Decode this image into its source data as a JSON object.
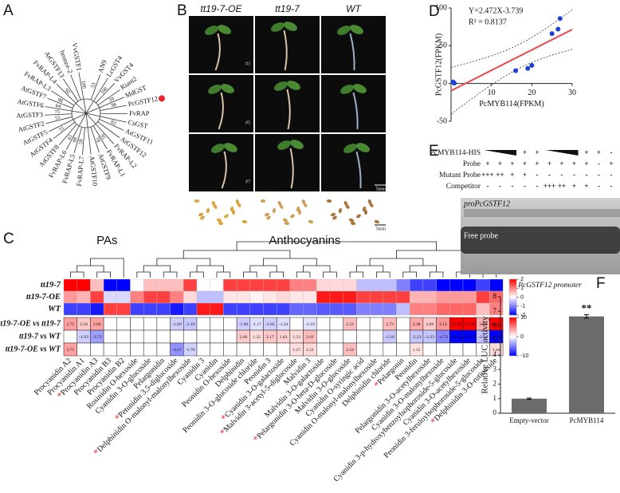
{
  "panel_letters": [
    "A",
    "B",
    "C",
    "D",
    "E",
    "F"
  ],
  "tree": {
    "leaves": [
      {
        "label": "VvGSTF1",
        "support": "100"
      },
      {
        "label": "bronze-2"
      },
      {
        "label": "AtGSTF13"
      },
      {
        "label": "FvRAP-L4",
        "support": "92"
      },
      {
        "label": "FvRAP-L3"
      },
      {
        "label": "AtGSTF7",
        "support": "98"
      },
      {
        "label": "AtGSTF6",
        "support": "64"
      },
      {
        "label": "AtGSTF3",
        "support": "75"
      },
      {
        "label": "AtGSTF2",
        "support": "55"
      },
      {
        "label": "AtGSTF5"
      },
      {
        "label": "AtGSTF4",
        "support": "51"
      },
      {
        "label": "AtGSTF8"
      },
      {
        "label": "FvRAP-L6",
        "support": "61"
      },
      {
        "label": "FvRAP-L5",
        "support": "99"
      },
      {
        "label": "FvRAP-L7",
        "support": "58"
      },
      {
        "label": "AtGSTF10"
      },
      {
        "label": "AtGSTF9",
        "support": "78"
      },
      {
        "label": "FvRAP-L1",
        "support": "95"
      },
      {
        "label": "FvRAP-L2"
      },
      {
        "label": "AtGSTF12"
      },
      {
        "label": "AtGSTF11",
        "support": "83"
      },
      {
        "label": "CsGST"
      },
      {
        "label": "FvRAP"
      },
      {
        "label": "PcGSTF12",
        "support": "98",
        "dot": "#e8262b"
      },
      {
        "label": "MdGST",
        "support": "59"
      },
      {
        "label": "Riant2"
      },
      {
        "label": "VvGST4",
        "support": "100"
      },
      {
        "label": "LcGST4"
      },
      {
        "label": "AN9",
        "support": "53"
      }
    ]
  },
  "seedlings": {
    "headers": [
      "tt19-7-OE",
      "tt19-7",
      "WT"
    ],
    "lines": [
      "#3",
      "#5",
      "#7"
    ],
    "scale_bars": [
      "5mm",
      "5mm"
    ]
  },
  "heatmap": {
    "groups": [
      "PAs",
      "Anthocyanins"
    ],
    "rows": [
      {
        "name": "tt19-7",
        "values": [
          2,
          2,
          0.5,
          -2,
          -2,
          0,
          0.5,
          0.5,
          0.5,
          1.5,
          0,
          0,
          1.5,
          1.5,
          1.5,
          1.5,
          1.5,
          1,
          1,
          0.3,
          0.3,
          0.3,
          -0.5,
          -0.5,
          -0.5,
          -1,
          -1.5,
          -1.5,
          -2,
          -2,
          -2,
          -1.5,
          -2
        ]
      },
      {
        "name": "tt19-7-OE",
        "values": [
          0.8,
          0.6,
          1.5,
          -0.3,
          -0.3,
          1,
          1.5,
          1.5,
          1,
          0.3,
          -0.5,
          -0.5,
          0.2,
          0.2,
          0.1,
          0.2,
          0.3,
          0.2,
          0.2,
          1.8,
          1.8,
          1.8,
          1.5,
          1.5,
          1.5,
          1.5,
          0.6,
          0.6,
          0.8,
          0.8,
          0.8,
          1.5,
          1.2
        ]
      },
      {
        "name": "WT",
        "values": [
          -1.5,
          -1.5,
          -1.8,
          1.5,
          1.5,
          -1.5,
          -1.5,
          -1.5,
          -1.8,
          -1.5,
          1.8,
          1.8,
          -1.5,
          -1.5,
          -1.5,
          -1.5,
          -1.5,
          -1.2,
          -1.2,
          -1.3,
          -1.3,
          -1.3,
          -1,
          -1,
          -1,
          -0.5,
          1,
          1,
          1.2,
          1.2,
          1.2,
          0.5,
          1
        ]
      }
    ],
    "comparisons": [
      {
        "name": "tt19-7-OE vs tt19-7",
        "cells": [
          "3.75",
          "2.10",
          "3.66",
          null,
          null,
          null,
          null,
          null,
          "-1.89",
          "-2.16",
          null,
          null,
          null,
          "-1.96",
          "-1.17",
          "-1.85",
          "-1.24",
          null,
          "-1.10",
          null,
          null,
          "2.54",
          null,
          null,
          "2.73",
          null,
          "3.38",
          "2.09",
          "4.12",
          "10.50",
          "12.98",
          "3.04",
          "12.67"
        ]
      },
      {
        "name": "tt19-7 vs WT",
        "cells": [
          null,
          "-1.93",
          "-3.72",
          null,
          null,
          null,
          null,
          null,
          null,
          null,
          null,
          null,
          null,
          "2.06",
          "1.32",
          "2.17",
          "1.83",
          "1.33",
          "2.61",
          null,
          null,
          null,
          null,
          null,
          "-2.16",
          null,
          "-2.23",
          "-2.23",
          "-4.73",
          "-10.45",
          "-13.07",
          "-2.34",
          "-12.67"
        ]
      },
      {
        "name": "tt19-7-OE vs WT",
        "cells": [
          "3.75",
          null,
          null,
          null,
          null,
          null,
          null,
          null,
          "-4.27",
          "-1.76",
          null,
          null,
          null,
          null,
          null,
          null,
          null,
          "1.27",
          "1.51",
          null,
          null,
          "2.54",
          null,
          null,
          null,
          null,
          "1.15",
          null,
          null,
          null,
          null,
          null,
          "1.44"
        ]
      }
    ],
    "compounds": [
      {
        "name": "Procyanidin A2"
      },
      {
        "name": "Procyanidin A1"
      },
      {
        "name": "Procyanidin A3",
        "star": "*"
      },
      {
        "name": "Procyanidin B3"
      },
      {
        "name": "Procyanidin B2"
      },
      {
        "name": "Rosinidin O-hexoside"
      },
      {
        "name": "Cyanidin 3-O-glucoside"
      },
      {
        "name": "Pelargonidin"
      },
      {
        "name": "Petunidin 3,5-diglucoside",
        "star": "*"
      },
      {
        "name": "Delphinidin O-malonyl-malonylhexoside",
        "star": "*"
      },
      {
        "name": "Cyanidin 3"
      },
      {
        "name": "Cyanidin"
      },
      {
        "name": "Peonidin O-hexoside"
      },
      {
        "name": "Delphinidin"
      },
      {
        "name": "Peonidin 3-O-glucoside chloride"
      },
      {
        "name": "Peonidin 3"
      },
      {
        "name": "Cyanidin 3-O-galactoside",
        "star": "*"
      },
      {
        "name": "Malvidin 3-acetyl-5-diglucoside",
        "star": "*"
      },
      {
        "name": "Malvidin 3"
      },
      {
        "name": "Malvidin 3-O-galactoside"
      },
      {
        "name": "Pelargonidin 3-O-beta-D-glucoside",
        "star": "*"
      },
      {
        "name": "Malvidin 3-O-glucoside"
      },
      {
        "name": "Cyanidin O-syringic acid"
      },
      {
        "name": "Cyanidin O-malonyl-malonylhexoside"
      },
      {
        "name": "Delphinidin chloride"
      },
      {
        "name": "Pelargonin",
        "star": "*"
      },
      {
        "name": "Peonidin"
      },
      {
        "name": "Pelargonidin 3-O-acetylhexoside"
      },
      {
        "name": "Cyanidin 3-O-malonylhexoside"
      },
      {
        "name": "Cyanidin 3-p-hydroxybenzoylsophoroside-5-glucoside"
      },
      {
        "name": "Cyanidin 3-O-acetylhexoside"
      },
      {
        "name": "Peonidin 3-feruloylsophoroside-5-glucoside"
      },
      {
        "name": "Delphinidin 3-O-rutinoside",
        "star": "*"
      }
    ],
    "scale": {
      "lim": [
        -2,
        2
      ],
      "ticks": [
        2,
        1,
        0,
        -1,
        -2
      ]
    },
    "scale2": {
      "lim": [
        -10,
        10
      ],
      "ticks": [
        10,
        0,
        -10
      ]
    }
  },
  "emsa": {
    "rows": [
      {
        "name": "PcMYB114-HIS",
        "lanes": [
          null,
          null,
          null,
          "+",
          "+",
          null,
          null,
          null,
          "+",
          "+",
          "-"
        ]
      },
      {
        "name": "Probe",
        "lanes": [
          "+",
          "+",
          "+",
          "+",
          "+",
          "+",
          "+",
          "+",
          "+",
          "-",
          "+"
        ]
      },
      {
        "name": "Mutant Probe",
        "lanes": [
          "+++",
          "++",
          "+",
          "+",
          "-",
          "-",
          "-",
          "-",
          "-",
          "-",
          "-"
        ]
      },
      {
        "name": "Competitor",
        "lanes": [
          "-",
          "-",
          "-",
          "-",
          "-",
          "+++",
          "++",
          "+",
          "+",
          "-",
          "-"
        ]
      }
    ],
    "bands": [
      "proPcGSTF12",
      "Free probe"
    ]
  },
  "chart_data": [
    {
      "type": "scatter",
      "equation": "Y=2.472X-3.739",
      "r_squared": "R² = 0.8137",
      "x": [
        0.5,
        0.8,
        16,
        19,
        20,
        25,
        26.5,
        27
      ],
      "values": [
        2,
        0.5,
        17,
        20,
        24,
        66,
        72,
        86
      ],
      "color": "#1f3fd6",
      "fit_color": "#e84a4a",
      "xlabel": "PcMYB114(FPKM)",
      "ylabel": "PcGSTF12(FPKM)",
      "xlim": [
        0,
        30
      ],
      "xticks": [
        10,
        20,
        30
      ],
      "ylim": [
        -50,
        100
      ],
      "yticks": [
        -50,
        0,
        50,
        100
      ]
    },
    {
      "type": "bar",
      "title": "PcGSTF12 promoter",
      "categories": [
        "Empty-vector",
        "PcMYB114"
      ],
      "values": [
        1,
        6.65
      ],
      "errors": [
        0.04,
        0.12
      ],
      "annotations": [
        null,
        "**"
      ],
      "color": "#6b6b6b",
      "ylabel": "Relative LUC activity",
      "ylim": [
        0,
        8
      ],
      "yticks": [
        0,
        1,
        2,
        3,
        4,
        5,
        6,
        7,
        8
      ]
    }
  ]
}
